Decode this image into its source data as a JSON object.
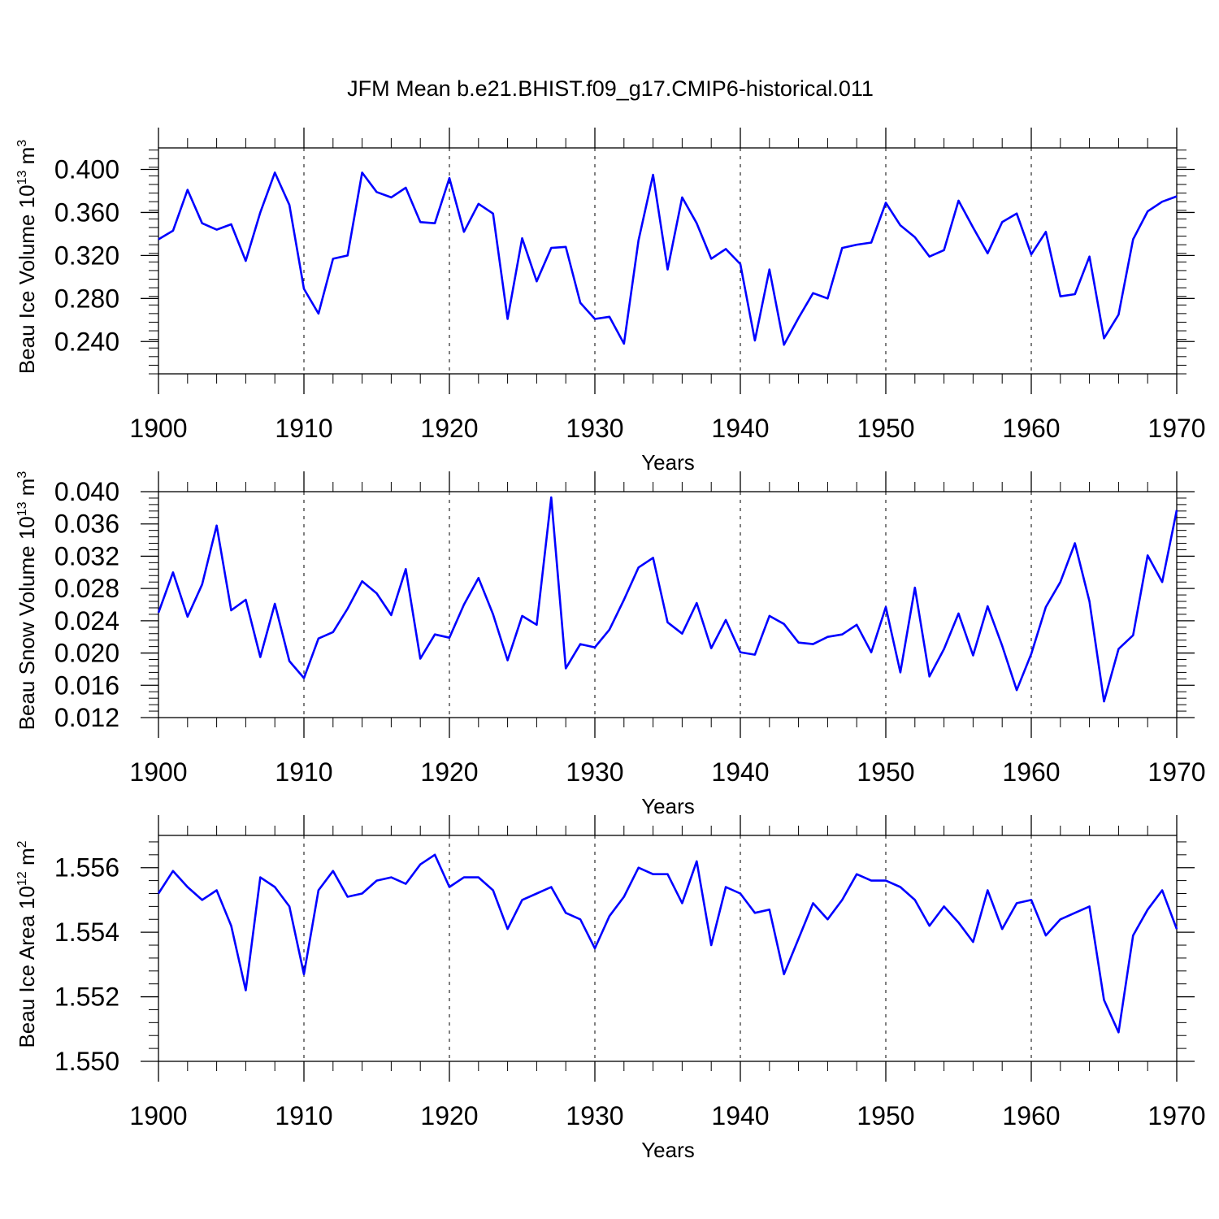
{
  "title": "JFM Mean b.e21.BHIST.f09_g17.CMIP6-historical.011",
  "colors": {
    "line": "#0000ff",
    "axis": "#000000",
    "grid": "#000000"
  },
  "chart_data": [
    {
      "type": "line",
      "name": "ice-volume",
      "ylabel": {
        "main": "Beau Ice Volume 10",
        "sup1": "13",
        "mid": " m",
        "sup2": "3"
      },
      "xlabel": "Years",
      "xlim": [
        1900,
        1970
      ],
      "ylim": [
        0.21,
        0.42
      ],
      "yticks": [
        0.24,
        0.28,
        0.32,
        0.36,
        0.4
      ],
      "ytick_labels": [
        "0.240",
        "0.280",
        "0.320",
        "0.360",
        "0.400"
      ],
      "xticks": [
        1900,
        1910,
        1920,
        1930,
        1940,
        1950,
        1960,
        1970
      ],
      "xtick_labels": [
        "1900",
        "1910",
        "1920",
        "1930",
        "1940",
        "1950",
        "1960",
        "1970"
      ],
      "grid_x": [
        1910,
        1920,
        1930,
        1940,
        1950,
        1960
      ],
      "x_start": 1900,
      "values": [
        0.335,
        0.343,
        0.381,
        0.35,
        0.344,
        0.349,
        0.315,
        0.36,
        0.397,
        0.367,
        0.289,
        0.266,
        0.317,
        0.32,
        0.397,
        0.379,
        0.374,
        0.383,
        0.351,
        0.35,
        0.392,
        0.342,
        0.368,
        0.359,
        0.261,
        0.336,
        0.296,
        0.327,
        0.328,
        0.276,
        0.261,
        0.263,
        0.238,
        0.334,
        0.395,
        0.307,
        0.374,
        0.35,
        0.317,
        0.326,
        0.312,
        0.241,
        0.307,
        0.237,
        0.262,
        0.285,
        0.28,
        0.327,
        0.33,
        0.332,
        0.369,
        0.348,
        0.337,
        0.319,
        0.325,
        0.371,
        0.346,
        0.322,
        0.351,
        0.359,
        0.321,
        0.342,
        0.282,
        0.284,
        0.319,
        0.243,
        0.265,
        0.335,
        0.361,
        0.37,
        0.375
      ]
    },
    {
      "type": "line",
      "name": "snow-volume",
      "ylabel": {
        "main": "Beau Snow Volume 10",
        "sup1": "13",
        "mid": " m",
        "sup2": "3"
      },
      "xlabel": "Years",
      "xlim": [
        1900,
        1970
      ],
      "ylim": [
        0.012,
        0.04
      ],
      "yticks": [
        0.012,
        0.016,
        0.02,
        0.024,
        0.028,
        0.032,
        0.036,
        0.04
      ],
      "ytick_labels": [
        "0.012",
        "0.016",
        "0.020",
        "0.024",
        "0.028",
        "0.032",
        "0.036",
        "0.040"
      ],
      "xticks": [
        1900,
        1910,
        1920,
        1930,
        1940,
        1950,
        1960,
        1970
      ],
      "xtick_labels": [
        "1900",
        "1910",
        "1920",
        "1930",
        "1940",
        "1950",
        "1960",
        "1970"
      ],
      "grid_x": [
        1910,
        1920,
        1930,
        1940,
        1950,
        1960
      ],
      "x_start": 1900,
      "values": [
        0.025,
        0.03,
        0.0245,
        0.0285,
        0.0358,
        0.0253,
        0.0266,
        0.0195,
        0.0261,
        0.019,
        0.0169,
        0.0218,
        0.0226,
        0.0255,
        0.0289,
        0.0274,
        0.0247,
        0.0304,
        0.0193,
        0.0223,
        0.0219,
        0.026,
        0.0293,
        0.0248,
        0.0191,
        0.0246,
        0.0235,
        0.0393,
        0.0181,
        0.0211,
        0.0207,
        0.0229,
        0.0266,
        0.0306,
        0.0318,
        0.0238,
        0.0224,
        0.0262,
        0.0206,
        0.0241,
        0.0201,
        0.0198,
        0.0246,
        0.0236,
        0.0213,
        0.0211,
        0.022,
        0.0223,
        0.0235,
        0.0201,
        0.0257,
        0.0176,
        0.0281,
        0.0171,
        0.0205,
        0.0249,
        0.0197,
        0.0258,
        0.0209,
        0.0154,
        0.0199,
        0.0257,
        0.0288,
        0.0336,
        0.0264,
        0.014,
        0.0205,
        0.0222,
        0.0321,
        0.0288,
        0.0377
      ]
    },
    {
      "type": "line",
      "name": "ice-area",
      "ylabel": {
        "main": "Beau Ice Area 10",
        "sup1": "12",
        "mid": " m",
        "sup2": "2"
      },
      "xlabel": "Years",
      "xlim": [
        1900,
        1970
      ],
      "ylim": [
        1.55,
        1.557
      ],
      "yticks": [
        1.55,
        1.552,
        1.554,
        1.556
      ],
      "ytick_labels": [
        "1.550",
        "1.552",
        "1.554",
        "1.556"
      ],
      "xticks": [
        1900,
        1910,
        1920,
        1930,
        1940,
        1950,
        1960,
        1970
      ],
      "xtick_labels": [
        "1900",
        "1910",
        "1920",
        "1930",
        "1940",
        "1950",
        "1960",
        "1970"
      ],
      "grid_x": [
        1910,
        1920,
        1930,
        1940,
        1950,
        1960
      ],
      "x_start": 1900,
      "values": [
        1.5552,
        1.5559,
        1.5554,
        1.555,
        1.5553,
        1.5542,
        1.5522,
        1.5557,
        1.5554,
        1.5548,
        1.5527,
        1.5553,
        1.5559,
        1.5551,
        1.5552,
        1.5556,
        1.5557,
        1.5555,
        1.5561,
        1.5564,
        1.5554,
        1.5557,
        1.5557,
        1.5553,
        1.5541,
        1.555,
        1.5552,
        1.5554,
        1.5546,
        1.5544,
        1.5535,
        1.5545,
        1.5551,
        1.556,
        1.5558,
        1.5558,
        1.5549,
        1.5562,
        1.5536,
        1.5554,
        1.5552,
        1.5546,
        1.5547,
        1.5527,
        1.5538,
        1.5549,
        1.5544,
        1.555,
        1.5558,
        1.5556,
        1.5556,
        1.5554,
        1.555,
        1.5542,
        1.5548,
        1.5543,
        1.5537,
        1.5553,
        1.5541,
        1.5549,
        1.555,
        1.5539,
        1.5544,
        1.5546,
        1.5548,
        1.5519,
        1.5509,
        1.5539,
        1.5547,
        1.5553,
        1.5541
      ]
    }
  ]
}
